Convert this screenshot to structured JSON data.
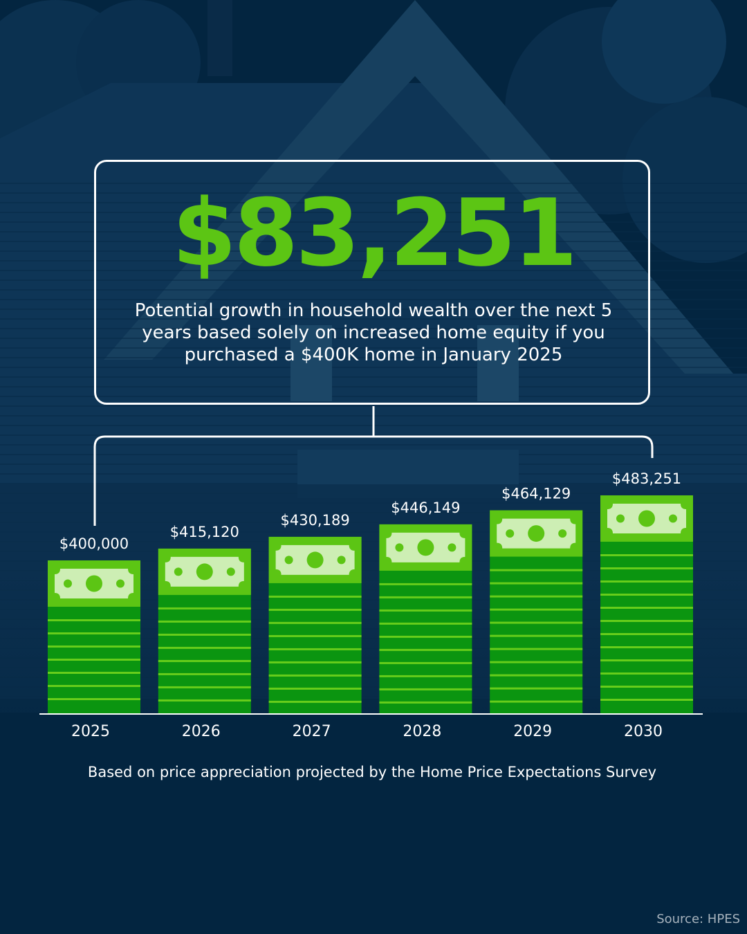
{
  "headline": {
    "value": "$83,251",
    "description": "Potential growth in household wealth over the next 5 years based solely on increased home equity if you purchased a $400K home in January 2025"
  },
  "chart_data": {
    "type": "bar",
    "title": "",
    "xlabel": "",
    "ylabel": "",
    "categories": [
      "2025",
      "2026",
      "2027",
      "2028",
      "2029",
      "2030"
    ],
    "values": [
      400000,
      415120,
      430189,
      446149,
      464129,
      483251
    ],
    "value_labels": [
      "$400,000",
      "$415,120",
      "$430,189",
      "$446,149",
      "$464,129",
      "$483,251"
    ],
    "grid": false,
    "legend": "none"
  },
  "footnote": "Based on price appreciation projected by the Home Price Expectations Survey",
  "source": "Source: HPES",
  "colors": {
    "background": "#032540",
    "accent_green": "#5cc514",
    "bar_green": "#0b9510",
    "bar_stripe": "#67cd1b",
    "bill_face": "#cdeeb4",
    "text": "#ffffff"
  }
}
